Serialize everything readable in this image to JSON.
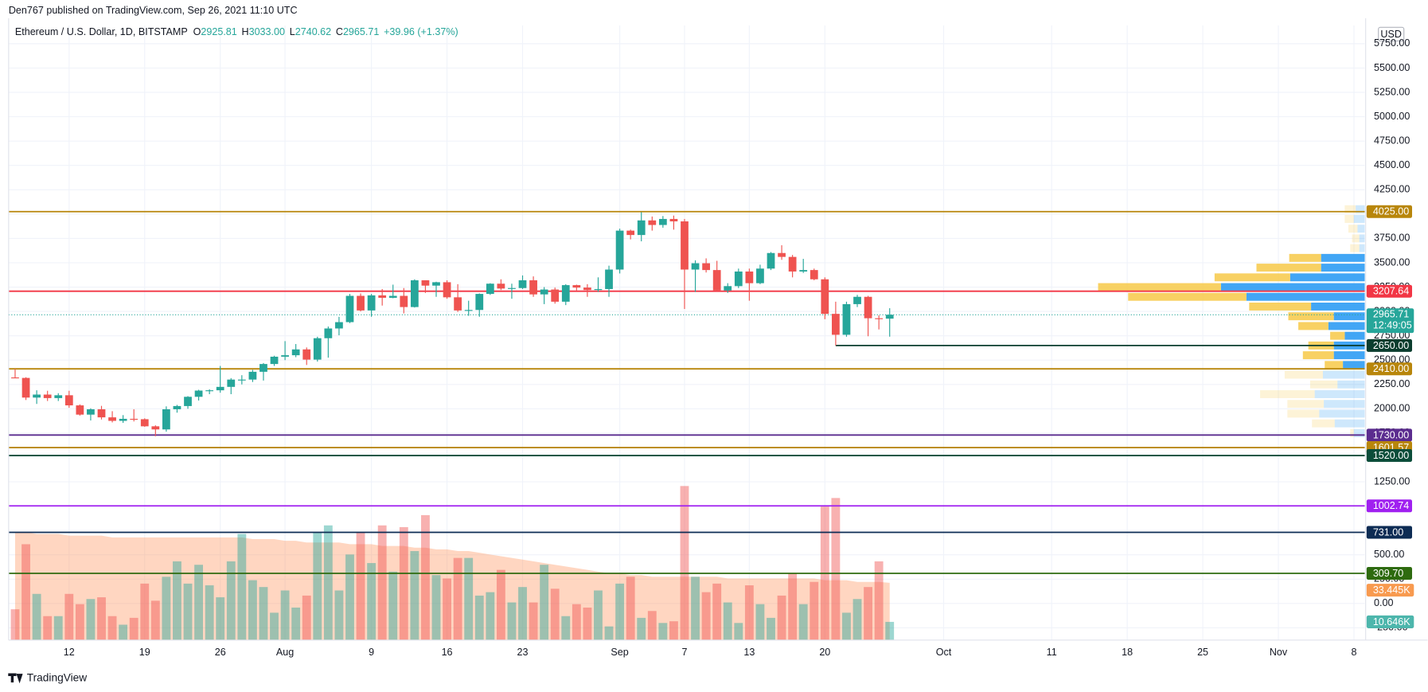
{
  "header": "Den767 published on TradingView.com, Sep 26, 2021 11:10 UTC",
  "brand": "TradingView",
  "chart_data": {
    "type": "candlestick",
    "title": "Ethereum / U.S. Dollar, 1D, BITSTAMP",
    "legend_items": [
      {
        "key": "O",
        "value": "2925.81"
      },
      {
        "key": "H",
        "value": "3033.00"
      },
      {
        "key": "L",
        "value": "2740.62"
      },
      {
        "key": "C",
        "value": "2965.71"
      }
    ],
    "change": "+39.96 (+1.37%)",
    "currency": "USD",
    "up_color": "#26a69a",
    "down_color": "#ef5350",
    "open": [
      2322,
      2317,
      2115,
      2146,
      2110,
      2139,
      2035,
      1940,
      1995,
      1912,
      1876,
      1897,
      1893,
      1820,
      1788,
      1995,
      2028,
      2123,
      2187,
      2190,
      2225,
      2300,
      2300,
      2380,
      2460,
      2535,
      2550,
      2610,
      2505,
      2725,
      2825,
      2890,
      3160,
      3010,
      3165,
      3140,
      3160,
      3045,
      3320,
      3265,
      3300,
      3145,
      3010,
      3015,
      3180,
      3285,
      3235,
      3240,
      3320,
      3175,
      3225,
      3100,
      3270,
      3245,
      3220,
      3230,
      3430,
      3830,
      3785,
      3935,
      3888,
      3950,
      3925,
      3430,
      3495,
      3425,
      3215,
      3260,
      3410,
      3290,
      3440,
      3600,
      3560,
      3410,
      3425,
      3330,
      2975,
      2760,
      3075,
      3150,
      2930,
      2925.81
    ],
    "high": [
      2410,
      2324,
      2190,
      2185,
      2160,
      2185,
      2045,
      2005,
      2030,
      1975,
      1935,
      1995,
      1902,
      1830,
      2025,
      2040,
      2130,
      2195,
      2200,
      2440,
      2315,
      2345,
      2400,
      2470,
      2545,
      2695,
      2665,
      2630,
      2740,
      2845,
      2945,
      3180,
      3185,
      3180,
      3230,
      3275,
      3240,
      3330,
      3320,
      3305,
      3320,
      3280,
      3110,
      3185,
      3290,
      3330,
      3285,
      3370,
      3360,
      3250,
      3245,
      3280,
      3275,
      3280,
      3350,
      3470,
      3850,
      3840,
      4020,
      3975,
      3980,
      3985,
      3950,
      3525,
      3545,
      3520,
      3290,
      3440,
      3440,
      3480,
      3610,
      3680,
      3580,
      3540,
      3440,
      3350,
      3100,
      3100,
      3170,
      3160,
      2960,
      3033
    ],
    "low": [
      2313,
      2090,
      2050,
      2080,
      2080,
      2010,
      1930,
      1880,
      1890,
      1860,
      1855,
      1870,
      1815,
      1718,
      1765,
      1960,
      2000,
      2085,
      2150,
      2165,
      2150,
      2250,
      2275,
      2290,
      2440,
      2500,
      2530,
      2450,
      2485,
      2525,
      2755,
      2880,
      3000,
      2945,
      3060,
      3135,
      2980,
      3040,
      3190,
      3150,
      3130,
      2995,
      2955,
      2945,
      3170,
      3220,
      3130,
      3230,
      3150,
      3075,
      3080,
      3065,
      3215,
      3150,
      3200,
      3150,
      3390,
      3740,
      3720,
      3830,
      3860,
      3840,
      3025,
      3200,
      3400,
      3210,
      3190,
      3240,
      3110,
      3280,
      3425,
      3530,
      3350,
      3395,
      3320,
      2920,
      2650,
      2740,
      3045,
      2745,
      2815,
      2740.62
    ],
    "close": [
      2317,
      2115,
      2146,
      2110,
      2139,
      2035,
      1940,
      1995,
      1912,
      1876,
      1897,
      1893,
      1820,
      1788,
      1995,
      2028,
      2123,
      2187,
      2190,
      2225,
      2300,
      2300,
      2380,
      2460,
      2535,
      2550,
      2610,
      2505,
      2725,
      2825,
      2890,
      3160,
      3010,
      3165,
      3140,
      3160,
      3045,
      3320,
      3265,
      3300,
      3145,
      3010,
      3015,
      3180,
      3285,
      3235,
      3240,
      3320,
      3175,
      3225,
      3100,
      3270,
      3245,
      3220,
      3230,
      3430,
      3830,
      3785,
      3935,
      3888,
      3950,
      3925,
      3430,
      3495,
      3425,
      3215,
      3260,
      3410,
      3290,
      3440,
      3600,
      3560,
      3410,
      3425,
      3330,
      2975,
      2760,
      3075,
      3150,
      2930,
      2925.75,
      2965.71
    ],
    "volume": [
      18000,
      56000,
      27000,
      14000,
      14000,
      27000,
      21000,
      24000,
      25000,
      14000,
      9000,
      13000,
      33000,
      23000,
      37000,
      46000,
      33000,
      44000,
      32000,
      25000,
      46000,
      62000,
      35000,
      31000,
      16000,
      29000,
      19000,
      26000,
      63000,
      67000,
      29000,
      50000,
      63000,
      45000,
      67000,
      40000,
      66000,
      52000,
      73000,
      38000,
      36000,
      48000,
      48000,
      26000,
      28000,
      41000,
      22000,
      31000,
      22000,
      44000,
      30000,
      14000,
      21000,
      19000,
      29000,
      8000,
      33000,
      37000,
      13000,
      17000,
      10000,
      11000,
      90000,
      37000,
      28000,
      33000,
      22000,
      10000,
      32000,
      21000,
      13000,
      26000,
      39000,
      21000,
      34000,
      78000,
      83000,
      16000,
      24000,
      31000,
      46000,
      10646
    ],
    "volume_ma": [
      63000,
      63000,
      62000,
      62000,
      62000,
      61000,
      61000,
      61000,
      61000,
      60000,
      60000,
      60000,
      60000,
      60000,
      60000,
      60000,
      60000,
      60000,
      60000,
      60000,
      60000,
      60000,
      59000,
      59000,
      59000,
      58000,
      58000,
      57000,
      57000,
      57000,
      57000,
      56000,
      56000,
      56000,
      55000,
      55000,
      55000,
      54000,
      54000,
      53000,
      53000,
      52000,
      52000,
      51000,
      50000,
      49000,
      48000,
      47000,
      46000,
      45000,
      44000,
      43000,
      42000,
      41000,
      40000,
      39000,
      39000,
      38000,
      38000,
      37000,
      37000,
      37000,
      37000,
      37000,
      37000,
      37000,
      36000,
      36000,
      36000,
      36000,
      36000,
      36000,
      36000,
      36000,
      36000,
      35000,
      35000,
      35000,
      34000,
      34000,
      34000,
      33445
    ],
    "volume_ma_label": "33.445K",
    "volume_label": "10.646K",
    "volume_ma_color": "#ff8a4c",
    "vlim": [
      0,
      359000
    ],
    "last_price": {
      "value": 2965.71,
      "label": "2965.71",
      "countdown": "12:49:05"
    },
    "xlim": [
      -0.6,
      125
    ],
    "xticks": [
      {
        "value": 5,
        "label": "12"
      },
      {
        "value": 12,
        "label": "19"
      },
      {
        "value": 19,
        "label": "26"
      },
      {
        "value": 25,
        "label": "Aug"
      },
      {
        "value": 33,
        "label": "9"
      },
      {
        "value": 40,
        "label": "16"
      },
      {
        "value": 47,
        "label": "23"
      },
      {
        "value": 56,
        "label": "Sep"
      },
      {
        "value": 62,
        "label": "7"
      },
      {
        "value": 68,
        "label": "13"
      },
      {
        "value": 75,
        "label": "20"
      },
      {
        "value": 86,
        "label": "Oct"
      },
      {
        "value": 96,
        "label": "11"
      },
      {
        "value": 103,
        "label": "18"
      },
      {
        "value": 110,
        "label": "25"
      },
      {
        "value": 117,
        "label": "Nov"
      },
      {
        "value": 124,
        "label": "8"
      }
    ],
    "ylim": [
      -376,
      5937
    ],
    "yticks": [
      {
        "value": 5750,
        "label": "5750.00"
      },
      {
        "value": 5500,
        "label": "5500.00"
      },
      {
        "value": 5250,
        "label": "5250.00"
      },
      {
        "value": 5000,
        "label": "5000.00"
      },
      {
        "value": 4750,
        "label": "4750.00"
      },
      {
        "value": 4500,
        "label": "4500.00"
      },
      {
        "value": 4250,
        "label": "4250.00"
      },
      {
        "value": 4000,
        "label": "4000.00"
      },
      {
        "value": 3750,
        "label": "3750.00"
      },
      {
        "value": 3500,
        "label": "3500.00"
      },
      {
        "value": 3250,
        "label": "3250.00"
      },
      {
        "value": 3000,
        "label": "3000.00"
      },
      {
        "value": 2750,
        "label": "2750.00"
      },
      {
        "value": 2500,
        "label": "2500.00"
      },
      {
        "value": 2250,
        "label": "2250.00"
      },
      {
        "value": 2000,
        "label": "2000.00"
      },
      {
        "value": 1750,
        "label": "1750.00"
      },
      {
        "value": 1500,
        "label": "1500.00"
      },
      {
        "value": 1250,
        "label": "1250.00"
      },
      {
        "value": 1000,
        "label": "1000.00"
      },
      {
        "value": 750,
        "label": "750.00"
      },
      {
        "value": 500,
        "label": "500.00"
      },
      {
        "value": 250,
        "label": "250.00"
      },
      {
        "value": 0,
        "label": "0.00"
      },
      {
        "value": -250,
        "label": "-250.00"
      }
    ],
    "grid": true,
    "levels": [
      {
        "value": 4025,
        "label": "4025.00",
        "color": "#b8860b"
      },
      {
        "value": 3207.64,
        "label": "3207.64",
        "color": "#f23645"
      },
      {
        "value": 2650,
        "label": "2650.00",
        "color": "#0b3d2e",
        "x_start": 76
      },
      {
        "value": 2410,
        "label": "2410.00",
        "color": "#b8860b"
      },
      {
        "value": 1730,
        "label": "1730.00",
        "color": "#5b2c8f"
      },
      {
        "value": 1601.57,
        "label": "1601.57",
        "color": "#b8860b"
      },
      {
        "value": 1520,
        "label": "1520.00",
        "color": "#0b4d3a"
      },
      {
        "value": 1002.74,
        "label": "1002.74",
        "color": "#a020f0"
      },
      {
        "value": 731,
        "label": "731.00",
        "color": "#0d2c54"
      },
      {
        "value": 309.7,
        "label": "309.70",
        "color": "#2e6b0f"
      }
    ],
    "volume_profile": {
      "bin_size": 100,
      "bins": [
        1700,
        1800,
        1900,
        2000,
        2100,
        2200,
        2300,
        2400,
        2500,
        2600,
        2700,
        2800,
        2900,
        3000,
        3100,
        3200,
        3300,
        3400,
        3500,
        3600,
        3700,
        3800,
        3900,
        4000
      ],
      "up": [
        12,
        33,
        50,
        45,
        55,
        30,
        46,
        24,
        34,
        34,
        22,
        40,
        34,
        59,
        130,
        158,
        82,
        48,
        48,
        6,
        6,
        8,
        12,
        10
      ],
      "down": [
        4,
        25,
        35,
        40,
        60,
        30,
        42,
        20,
        34,
        28,
        16,
        33,
        50,
        68,
        130,
        135,
        83,
        71,
        35,
        10,
        8,
        10,
        10,
        12
      ],
      "value_area": [
        2400,
        3600
      ],
      "up_color": "#2196f3",
      "down_color": "#f7c948",
      "plim": [
        0,
        300
      ]
    }
  }
}
